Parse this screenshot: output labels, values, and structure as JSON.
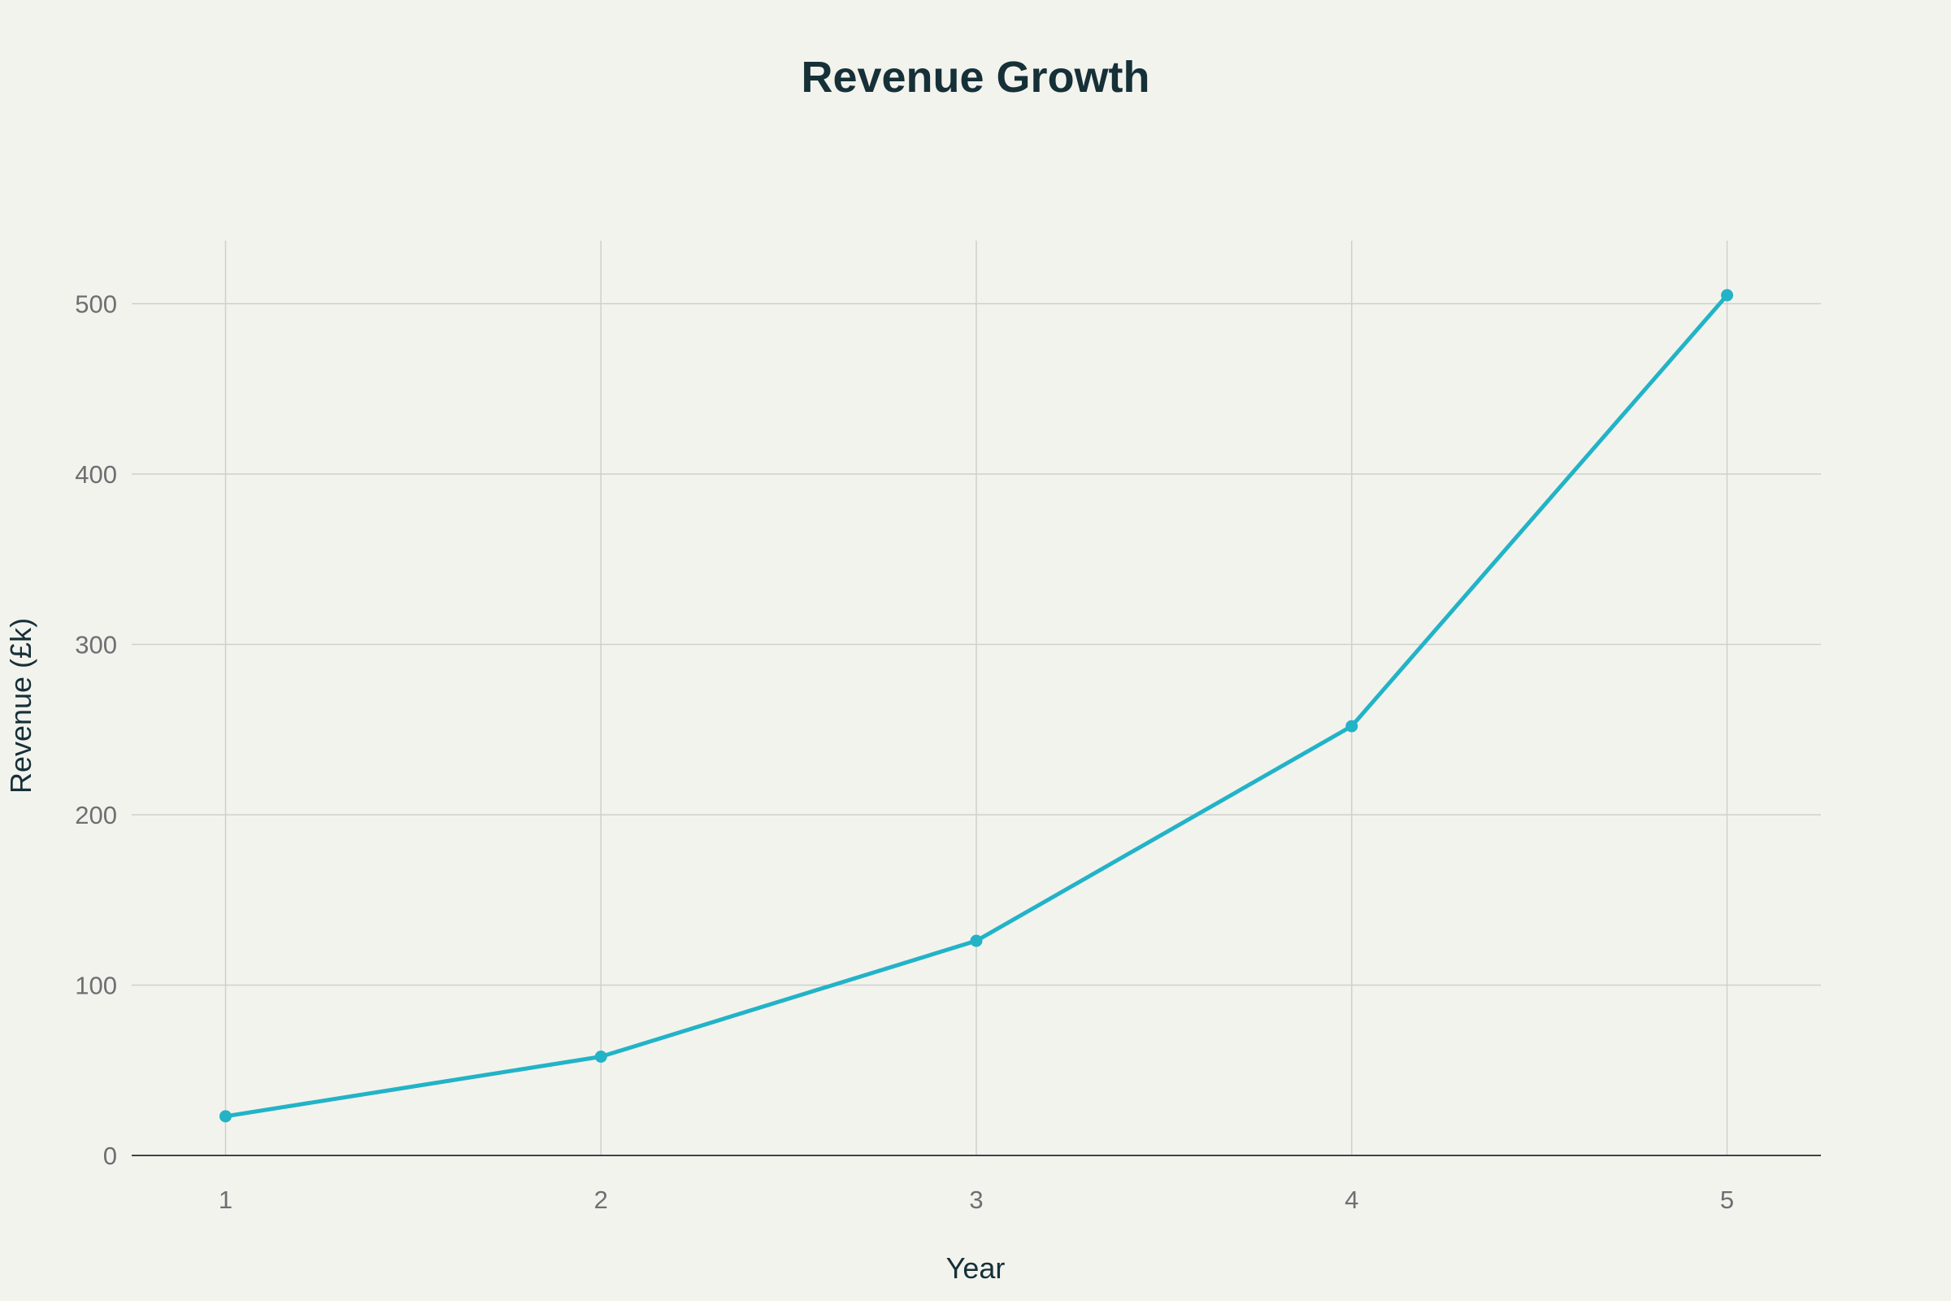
{
  "colors": {
    "background": "#f3f3ee",
    "series": "#22b3c7",
    "title": "#163038",
    "tick": "#6d6f70",
    "grid": "#cfd0cc"
  },
  "chart_data": {
    "type": "line",
    "title": "Revenue Growth",
    "xlabel": "Year",
    "ylabel": "Revenue (£k)",
    "x": [
      1,
      2,
      3,
      4,
      5
    ],
    "xlim": [
      0.75,
      5.25
    ],
    "ylim": [
      0,
      537
    ],
    "x_ticks": [
      "1",
      "2",
      "3",
      "4",
      "5"
    ],
    "y_ticks": [
      0,
      100,
      200,
      300,
      400,
      500
    ],
    "grid": true,
    "legend": "none",
    "series": [
      {
        "values": [
          23,
          58,
          126,
          252,
          505
        ],
        "markers": true
      }
    ]
  }
}
